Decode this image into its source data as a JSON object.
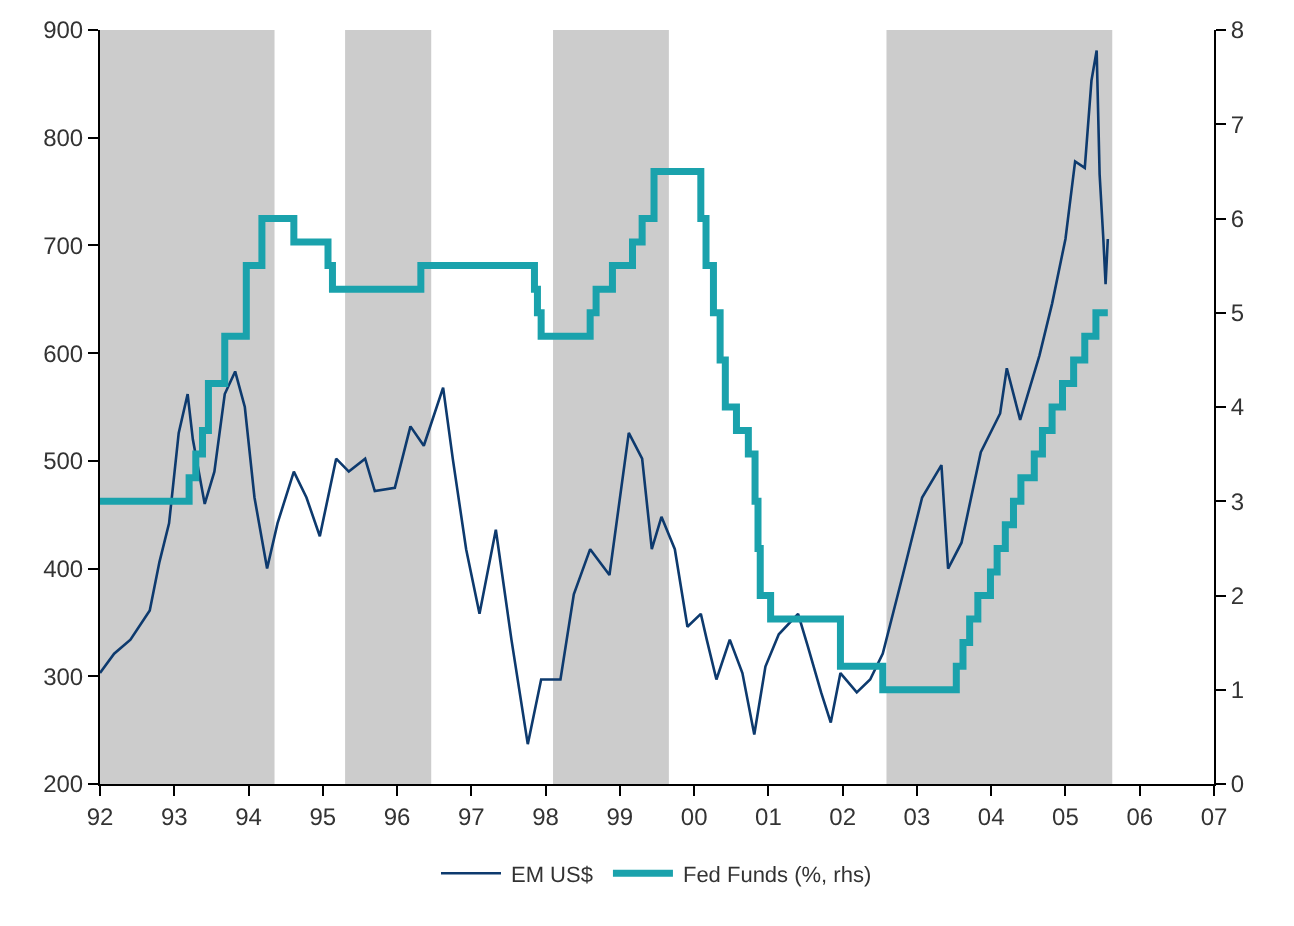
{
  "chart_data": {
    "type": "line",
    "legend": "bottom",
    "grid": false,
    "marker": "none",
    "xlim": [
      1992,
      2007
    ],
    "xticks": [
      {
        "value": 1992,
        "label": "92"
      },
      {
        "value": 1993,
        "label": "93"
      },
      {
        "value": 1994,
        "label": "94"
      },
      {
        "value": 1995,
        "label": "95"
      },
      {
        "value": 1996,
        "label": "96"
      },
      {
        "value": 1997,
        "label": "97"
      },
      {
        "value": 1998,
        "label": "98"
      },
      {
        "value": 1999,
        "label": "99"
      },
      {
        "value": 2000,
        "label": "00"
      },
      {
        "value": 2001,
        "label": "01"
      },
      {
        "value": 2002,
        "label": "02"
      },
      {
        "value": 2003,
        "label": "03"
      },
      {
        "value": 2004,
        "label": "04"
      },
      {
        "value": 2005,
        "label": "05"
      },
      {
        "value": 2006,
        "label": "06"
      },
      {
        "value": 2007,
        "label": "07"
      }
    ],
    "ylim": [
      200,
      900
    ],
    "yticks": [
      200,
      300,
      400,
      500,
      600,
      700,
      800,
      900
    ],
    "y2lim": [
      0,
      8
    ],
    "y2ticks": [
      0,
      1,
      2,
      3,
      4,
      5,
      6,
      7,
      8
    ],
    "bands": [
      {
        "axis": "x",
        "from": 1992,
        "to": 1994.35,
        "color": "#cccccc"
      },
      {
        "axis": "x",
        "from": 1995.3,
        "to": 1996.46,
        "color": "#cccccc"
      },
      {
        "axis": "x",
        "from": 1998.1,
        "to": 1999.66,
        "color": "#cccccc"
      },
      {
        "axis": "x",
        "from": 2002.59,
        "to": 2005.63,
        "color": "#cccccc"
      }
    ],
    "series": [
      {
        "name": "EM US$",
        "color": "#0d3a6e",
        "x": [
          1992.0,
          1992.19,
          1992.41,
          1992.67,
          1992.8,
          1992.93,
          1993.06,
          1993.18,
          1993.25,
          1993.41,
          1993.54,
          1993.68,
          1993.82,
          1993.95,
          1994.08,
          1994.25,
          1994.39,
          1994.61,
          1994.78,
          1994.96,
          1995.18,
          1995.35,
          1995.57,
          1995.7,
          1995.97,
          1996.18,
          1996.36,
          1996.62,
          1996.75,
          1996.93,
          1997.11,
          1997.33,
          1997.54,
          1997.76,
          1997.94,
          1998.2,
          1998.38,
          1998.6,
          1998.86,
          1999.12,
          1999.3,
          1999.43,
          1999.56,
          1999.74,
          1999.91,
          2000.09,
          2000.17,
          2000.3,
          2000.48,
          2000.65,
          2000.81,
          2000.96,
          2001.14,
          2001.4,
          2001.53,
          2001.71,
          2001.84,
          2001.97,
          2002.19,
          2002.37,
          2002.54,
          2002.81,
          2003.07,
          2003.33,
          2003.42,
          2003.6,
          2003.86,
          2004.12,
          2004.21,
          2004.39,
          2004.65,
          2004.82,
          2005.0,
          2005.13,
          2005.26,
          2005.35,
          2005.42,
          2005.46,
          2005.51,
          2005.54,
          2005.57
        ],
        "values": [
          303,
          321,
          334,
          361,
          406,
          442,
          526,
          562,
          520,
          460,
          490,
          562,
          583,
          550,
          466,
          400,
          442,
          490,
          466,
          430,
          502,
          490,
          502,
          472,
          475,
          532,
          514,
          568,
          502,
          418,
          358,
          436,
          334,
          237,
          297,
          297,
          376,
          418,
          394,
          526,
          502,
          418,
          448,
          418,
          346,
          358,
          334,
          297,
          334,
          303,
          246,
          309,
          339,
          358,
          328,
          285,
          257,
          303,
          285,
          297,
          321,
          394,
          466,
          496,
          400,
          424,
          508,
          544,
          586,
          538,
          598,
          646,
          706,
          778,
          772,
          853,
          881,
          766,
          706,
          664,
          706
        ]
      },
      {
        "name": "Fed Funds (%, rhs)",
        "type": "step",
        "axis": "y2",
        "color": "#1aa2ac",
        "x": [
          1992.0,
          1993.2,
          1993.29,
          1993.38,
          1993.46,
          1993.68,
          1993.97,
          1994.18,
          1994.61,
          1995.07,
          1995.13,
          1996.32,
          1997.85,
          1997.89,
          1997.94,
          1998.6,
          1998.68,
          1998.9,
          1999.17,
          1999.3,
          1999.46,
          2000.09,
          2000.16,
          2000.26,
          2000.35,
          2000.42,
          2000.57,
          2000.73,
          2000.82,
          2000.86,
          2000.89,
          2001.03,
          2001.97,
          2002.54,
          2003.53,
          2003.62,
          2003.71,
          2003.82,
          2003.99,
          2004.08,
          2004.19,
          2004.3,
          2004.4,
          2004.58,
          2004.69,
          2004.82,
          2004.96,
          2005.11,
          2005.26,
          2005.41,
          2005.57
        ],
        "values": [
          3.0,
          3.25,
          3.5,
          3.75,
          4.25,
          4.75,
          5.5,
          6.0,
          5.75,
          5.5,
          5.25,
          5.5,
          5.25,
          5.0,
          4.75,
          5.0,
          5.25,
          5.5,
          5.75,
          6.0,
          6.5,
          6.0,
          5.5,
          5.0,
          4.5,
          4.0,
          3.75,
          3.5,
          3.0,
          2.5,
          2.0,
          1.75,
          1.25,
          1.0,
          1.25,
          1.5,
          1.75,
          2.0,
          2.25,
          2.5,
          2.75,
          3.0,
          3.25,
          3.5,
          3.75,
          4.0,
          4.25,
          4.5,
          4.75,
          5.0,
          5.0
        ]
      }
    ]
  }
}
